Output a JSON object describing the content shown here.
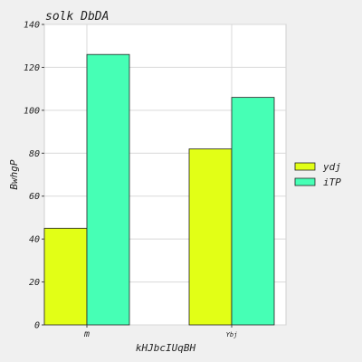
{
  "chart_data": {
    "type": "bar",
    "title": "solk DbDA",
    "xlabel": "kHJbcIUqBH",
    "ylabel": "BwhgP",
    "categories": [
      "m",
      "Ybj"
    ],
    "series": [
      {
        "name": "ydj",
        "values": [
          45,
          82
        ],
        "color": "#e2ff16"
      },
      {
        "name": "iTP",
        "values": [
          126,
          106
        ],
        "color": "#46ffb5"
      }
    ],
    "ylim": [
      0,
      140
    ],
    "yticks": [
      0,
      20,
      40,
      60,
      80,
      100,
      120,
      140
    ],
    "grid": true,
    "legend_position": "right"
  },
  "colors": {
    "background": "#f0f0f0",
    "plot_background": "#ffffff",
    "grid": "#d9d9d9",
    "bar_edge": "#222222"
  }
}
